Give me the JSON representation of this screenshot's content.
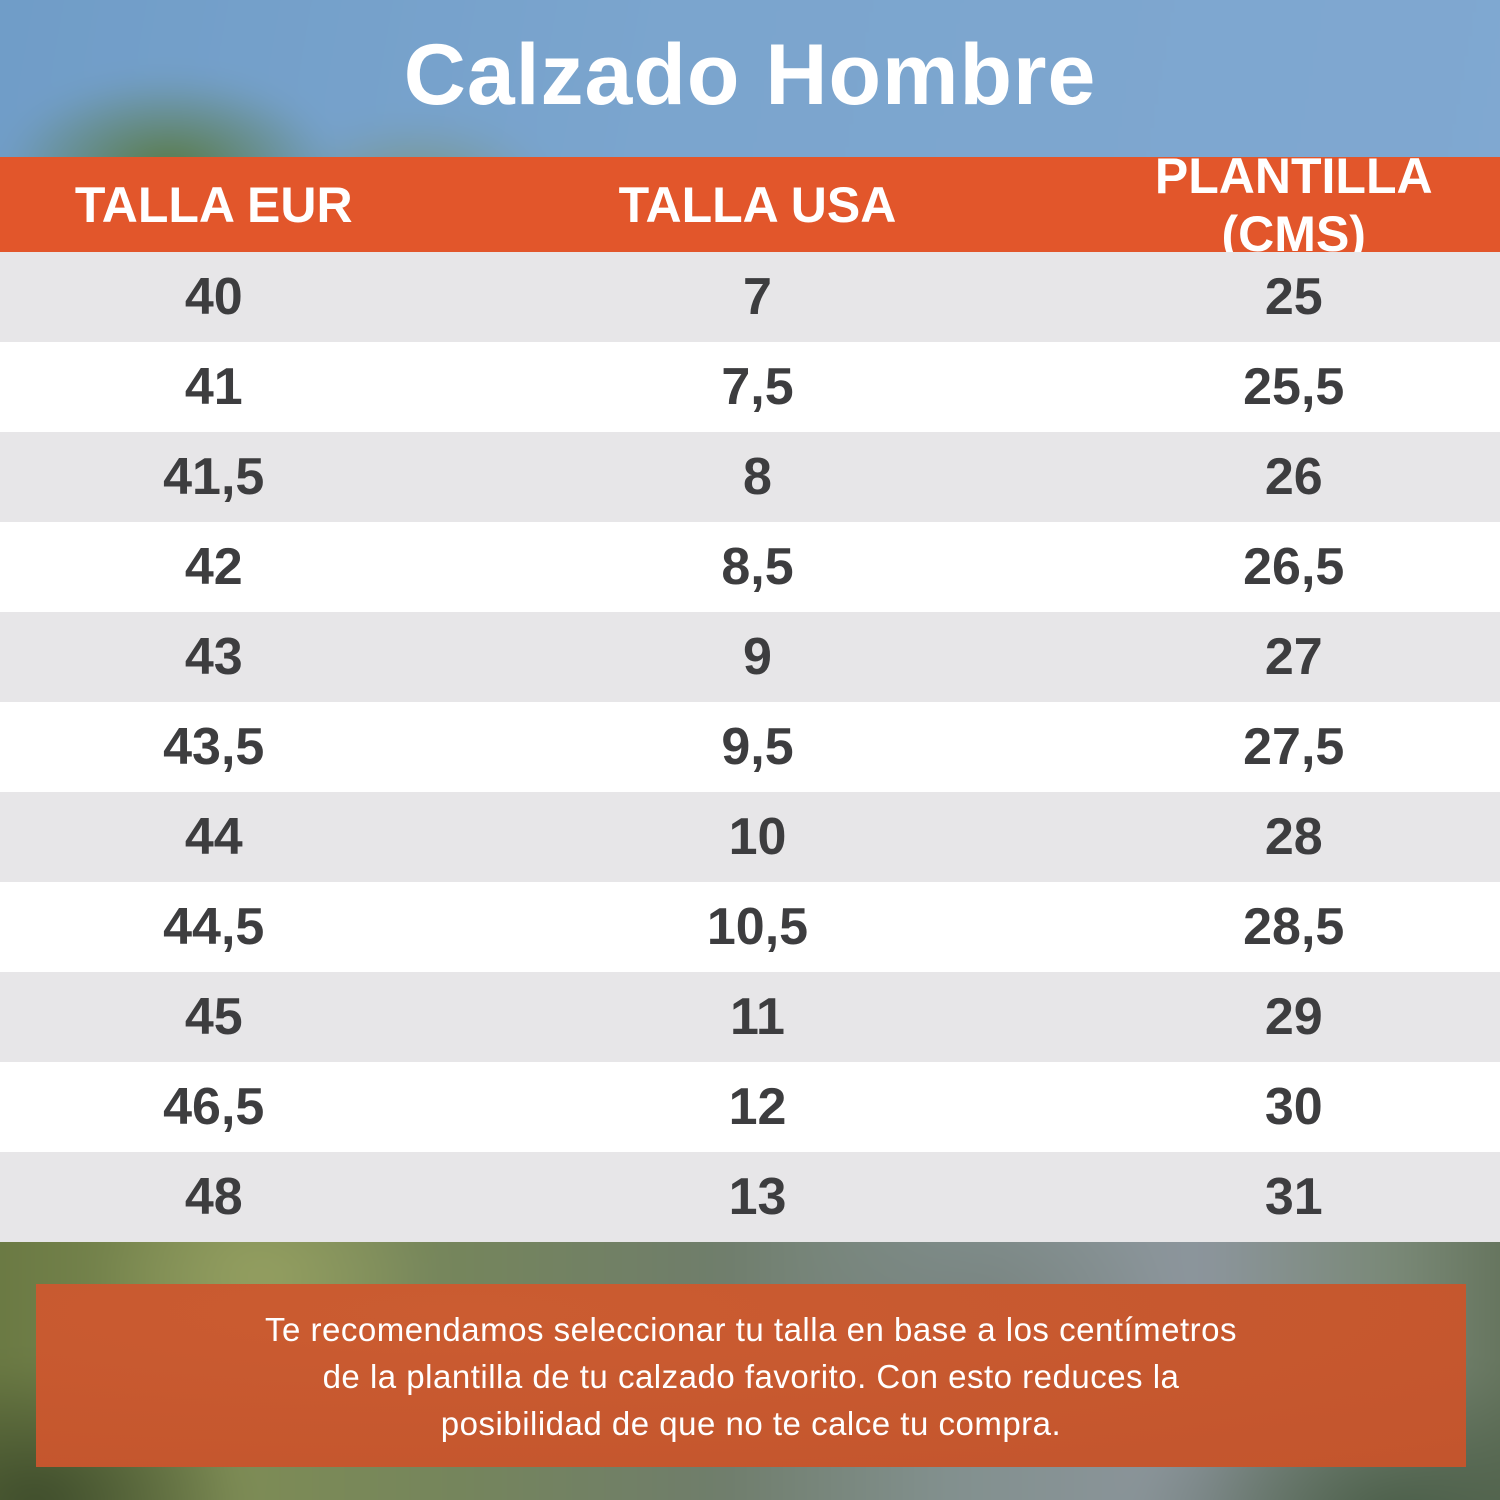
{
  "title": "Calzado Hombre",
  "table": {
    "columns": [
      "TALLA EUR",
      "TALLA USA",
      "PLANTILLA (CMS)"
    ],
    "rows": [
      [
        "40",
        "7",
        "25"
      ],
      [
        "41",
        "7,5",
        "25,5"
      ],
      [
        "41,5",
        "8",
        "26"
      ],
      [
        "42",
        "8,5",
        "26,5"
      ],
      [
        "43",
        "9",
        "27"
      ],
      [
        "43,5",
        "9,5",
        "27,5"
      ],
      [
        "44",
        "10",
        "28"
      ],
      [
        "44,5",
        "10,5",
        "28,5"
      ],
      [
        "45",
        "11",
        "29"
      ],
      [
        "46,5",
        "12",
        "30"
      ],
      [
        "48",
        "13",
        "31"
      ]
    ]
  },
  "note": {
    "lines": [
      "Te recomendamos seleccionar tu talla en base a los centímetros",
      "de la plantilla de tu calzado favorito. Con esto reduces la",
      "posibilidad de que no te calce tu compra."
    ]
  },
  "colors": {
    "header_orange": "#e2562b",
    "note_orange": "#cb5c31",
    "row_gray": "#e7e6e8",
    "row_white": "#ffffff",
    "text_dark": "#3d3d3f",
    "sky_blue": "#7ba5ce"
  }
}
